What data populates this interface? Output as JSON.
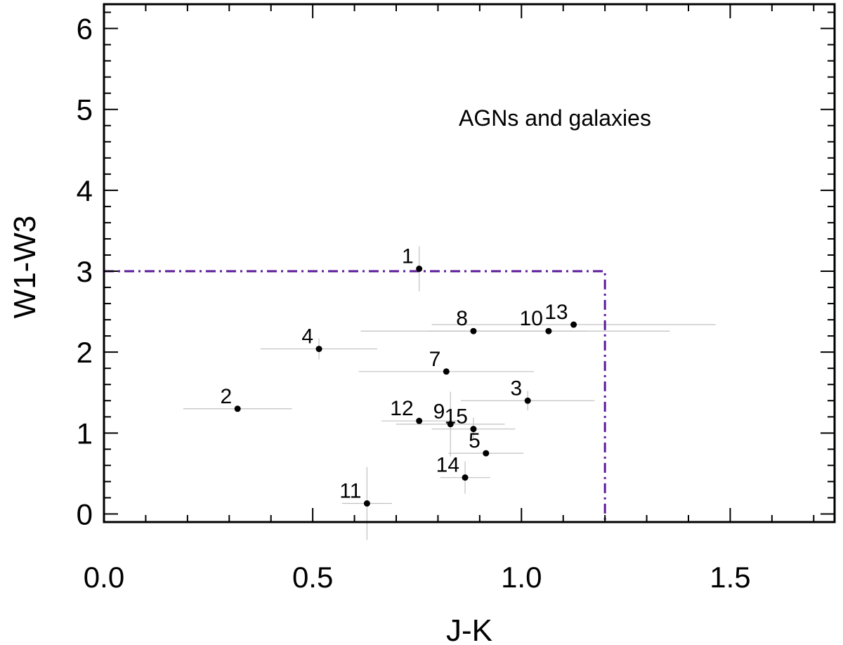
{
  "chart_data": {
    "type": "scatter",
    "xlabel": "J-K",
    "ylabel": "W1-W3",
    "xlim": [
      0.0,
      1.75
    ],
    "ylim": [
      -0.1,
      6.3
    ],
    "xticks": [
      0.0,
      0.5,
      1.0,
      1.5
    ],
    "xtick_labels": [
      "0.0",
      "0.5",
      "1.0",
      "1.5"
    ],
    "yticks": [
      0,
      1,
      2,
      3,
      4,
      5,
      6
    ],
    "ytick_labels": [
      "0",
      "1",
      "2",
      "3",
      "4",
      "5",
      "6"
    ],
    "annotation": "AGNs and galaxies",
    "region_boundary": {
      "x_max": 1.2,
      "y_max": 3.0,
      "color": "#5b1a9a",
      "style": "dash-dot"
    },
    "errorbar_color": "#c0c0c0",
    "point_color": "#000000",
    "points": [
      {
        "label": "1",
        "x": 0.755,
        "y": 3.03,
        "xerr": 0.0,
        "yerr": 0.28
      },
      {
        "label": "2",
        "x": 0.32,
        "y": 1.3,
        "xerr": 0.13,
        "yerr": 0.0
      },
      {
        "label": "3",
        "x": 1.015,
        "y": 1.4,
        "xerr": 0.16,
        "yerr": 0.12
      },
      {
        "label": "4",
        "x": 0.515,
        "y": 2.04,
        "xerr": 0.14,
        "yerr": 0.13
      },
      {
        "label": "5",
        "x": 0.915,
        "y": 0.75,
        "xerr": 0.09,
        "yerr": 0.0
      },
      {
        "label": "7",
        "x": 0.82,
        "y": 1.76,
        "xerr": 0.21,
        "yerr": 0.0
      },
      {
        "label": "8",
        "x": 0.885,
        "y": 2.26,
        "xerr": 0.27,
        "yerr": 0.0
      },
      {
        "label": "9",
        "x": 0.83,
        "y": 1.11,
        "xerr": 0.13,
        "yerr": 0.4
      },
      {
        "label": "10",
        "x": 1.065,
        "y": 2.26,
        "xerr": 0.29,
        "yerr": 0.0
      },
      {
        "label": "11",
        "x": 0.63,
        "y": 0.13,
        "xerr": 0.06,
        "yerr": 0.45
      },
      {
        "label": "12",
        "x": 0.755,
        "y": 1.15,
        "xerr": 0.09,
        "yerr": 0.0
      },
      {
        "label": "13",
        "x": 1.125,
        "y": 2.34,
        "xerr": 0.34,
        "yerr": 0.0
      },
      {
        "label": "14",
        "x": 0.865,
        "y": 0.45,
        "xerr": 0.06,
        "yerr": 0.2
      },
      {
        "label": "15",
        "x": 0.885,
        "y": 1.05,
        "xerr": 0.1,
        "yerr": 0.14
      }
    ]
  }
}
